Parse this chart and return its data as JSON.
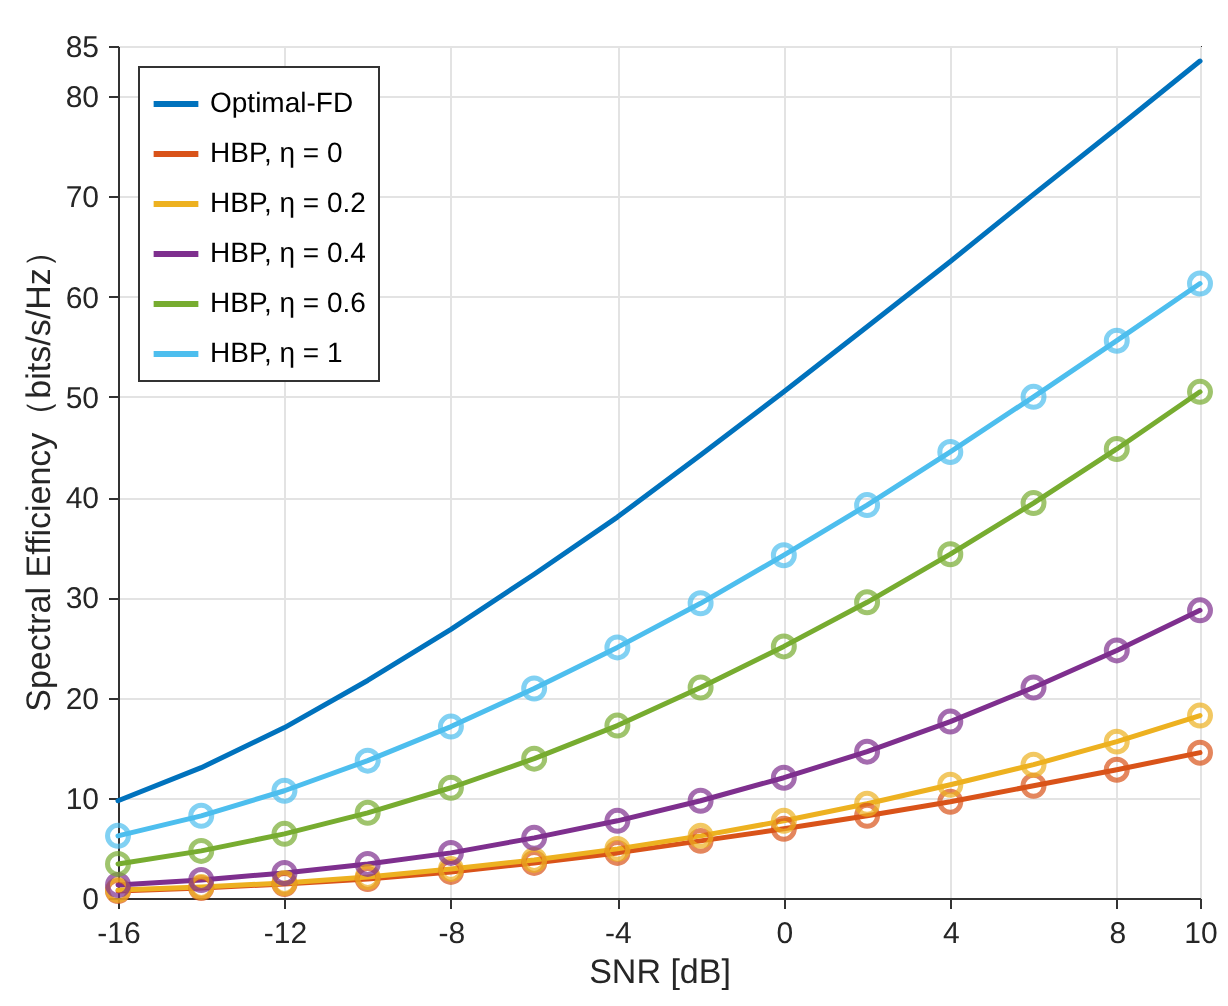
{
  "chart_data": {
    "type": "line",
    "xlabel": "SNR [dB]",
    "ylabel": "Spectral Efficiency（bits/s/Hz）",
    "x": [
      -16,
      -14,
      -12,
      -10,
      -8,
      -6,
      -4,
      -2,
      0,
      2,
      4,
      6,
      8,
      10
    ],
    "xlim": [
      -16,
      10
    ],
    "xticks": [
      -16,
      -12,
      -8,
      -4,
      0,
      4,
      8,
      10
    ],
    "ylim": [
      0,
      85
    ],
    "yticks": [
      0,
      10,
      20,
      30,
      40,
      50,
      60,
      70,
      80,
      85
    ],
    "grid": true,
    "legend": "top left",
    "marker": "circle",
    "series": [
      {
        "name": "Optimal-FD",
        "color": "#0072bd",
        "marker": "none",
        "values": [
          9.7,
          13,
          17,
          21.7,
          26.8,
          32.3,
          38,
          44.2,
          50.5,
          57,
          63.5,
          70.2,
          76.8,
          83.5
        ]
      },
      {
        "name": "HBP, η = 0",
        "color": "#d95319",
        "values": [
          0.7,
          1.0,
          1.4,
          1.9,
          2.6,
          3.5,
          4.5,
          5.7,
          6.9,
          8.2,
          9.6,
          11.2,
          12.8,
          14.5
        ]
      },
      {
        "name": "HBP, η = 0.2",
        "color": "#edb120",
        "values": [
          0.8,
          1.1,
          1.5,
          2.1,
          2.9,
          3.8,
          4.9,
          6.2,
          7.7,
          9.4,
          11.3,
          13.3,
          15.6,
          18.2
        ]
      },
      {
        "name": "HBP, η = 0.4",
        "color": "#7e2f8e",
        "values": [
          1.3,
          1.8,
          2.5,
          3.4,
          4.5,
          6.0,
          7.7,
          9.7,
          12,
          14.6,
          17.6,
          21,
          24.7,
          28.7
        ]
      },
      {
        "name": "HBP, η = 0.6",
        "color": "#77ac30",
        "values": [
          3.4,
          4.7,
          6.4,
          8.5,
          11,
          13.9,
          17.2,
          21,
          25.1,
          29.5,
          34.3,
          39.4,
          44.8,
          50.5
        ]
      },
      {
        "name": "HBP, η = 1",
        "color": "#4dbeee",
        "values": [
          6.2,
          8.2,
          10.7,
          13.7,
          17.1,
          20.9,
          25,
          29.4,
          34.2,
          39.2,
          44.5,
          50,
          55.6,
          61.3
        ]
      }
    ]
  }
}
